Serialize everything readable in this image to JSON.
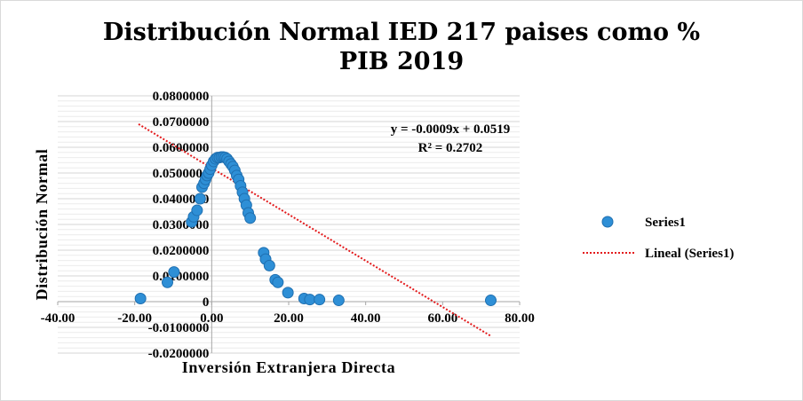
{
  "chart_data": {
    "type": "scatter",
    "title_line1": "Distribución Normal IED 217 paises como %",
    "title_line2": "PIB 2019",
    "xlabel": "Inversión Extranjera Directa",
    "ylabel": "Distribución Normal",
    "xlim": [
      -40,
      80
    ],
    "ylim": [
      -0.02,
      0.08
    ],
    "x_ticks": [
      "-40.00",
      "-20.00",
      "0.00",
      "20.00",
      "40.00",
      "60.00",
      "80.00"
    ],
    "x_tick_values": [
      -40,
      -20,
      0,
      20,
      40,
      60,
      80
    ],
    "y_ticks": [
      "-0.0200000",
      "-0.0100000",
      "0",
      "0.0100000",
      "0.0200000",
      "0.0300000",
      "0.0400000",
      "0.0500000",
      "0.0600000",
      "0.0700000",
      "0.0800000"
    ],
    "y_tick_values": [
      -0.02,
      -0.01,
      0,
      0.01,
      0.02,
      0.03,
      0.04,
      0.05,
      0.06,
      0.07,
      0.08
    ],
    "grid": true,
    "legend_position": "right",
    "series": [
      {
        "name": "Series1",
        "color": "#2e8fd6",
        "x": [
          -18.5,
          -11.5,
          -9.8,
          -5.2,
          -4.7,
          -3.8,
          -3.0,
          -2.5,
          -2.0,
          -1.6,
          -1.2,
          -0.8,
          -0.4,
          0.0,
          0.5,
          1.0,
          1.5,
          2.0,
          2.5,
          3.0,
          3.5,
          4.0,
          4.5,
          5.0,
          5.5,
          6.0,
          6.5,
          7.0,
          7.5,
          8.0,
          8.5,
          9.0,
          9.5,
          10.0,
          13.5,
          14.0,
          15.0,
          16.5,
          17.2,
          19.8,
          24.0,
          25.5,
          28.0,
          33.0,
          72.5
        ],
        "y": [
          0.0012,
          0.0075,
          0.0115,
          0.031,
          0.033,
          0.0355,
          0.04,
          0.0445,
          0.046,
          0.0475,
          0.049,
          0.05,
          0.0515,
          0.053,
          0.0545,
          0.0555,
          0.056,
          0.056,
          0.0562,
          0.0562,
          0.056,
          0.0555,
          0.0545,
          0.0535,
          0.0525,
          0.051,
          0.049,
          0.0475,
          0.045,
          0.0425,
          0.04,
          0.0375,
          0.0345,
          0.0325,
          0.019,
          0.0165,
          0.014,
          0.0085,
          0.0075,
          0.0035,
          0.0012,
          0.0008,
          0.0008,
          0.0005,
          0.0005
        ]
      }
    ],
    "trendline": {
      "name": "Lineal (Series1)",
      "slope": -0.0009,
      "intercept": 0.0519,
      "x_range": [
        -19,
        72.5
      ],
      "color": "#e31a1c",
      "equation": "y = -0.0009x + 0.0519",
      "r_squared": "R² = 0.2702"
    }
  }
}
